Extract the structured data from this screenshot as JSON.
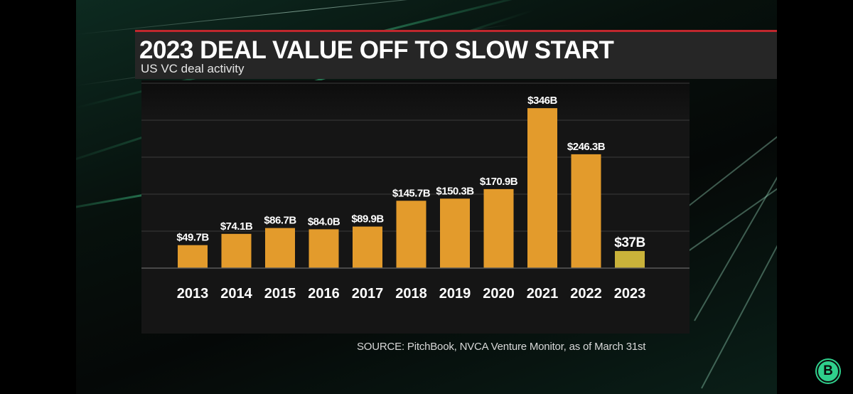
{
  "header": {
    "title": "2023 DEAL VALUE OFF TO SLOW START",
    "subtitle": "US VC deal activity"
  },
  "footer": {
    "source": "SOURCE: PitchBook, NVCA Venture Monitor, as of March 31st"
  },
  "badge": {
    "letter": "B",
    "color": "#2fd08c"
  },
  "colors": {
    "bar": "#e39b2c",
    "bar_current": "#c9b23a",
    "accent": "#c0272d",
    "panel": "#151515",
    "gridline": "#3a3a3a"
  },
  "chart_data": {
    "type": "bar",
    "title": "2023 DEAL VALUE OFF TO SLOW START",
    "subtitle": "US VC deal activity",
    "categories": [
      "2013",
      "2014",
      "2015",
      "2016",
      "2017",
      "2018",
      "2019",
      "2020",
      "2021",
      "2022",
      "2023"
    ],
    "values": [
      49.7,
      74.1,
      86.7,
      84.0,
      89.9,
      145.7,
      150.3,
      170.9,
      346,
      246.3,
      37
    ],
    "labels": [
      "$49.7B",
      "$74.1B",
      "$86.7B",
      "$84.0B",
      "$89.9B",
      "$145.7B",
      "$150.3B",
      "$170.9B",
      "$346B",
      "$246.3B",
      "$37B"
    ],
    "unit": "$B",
    "xlabel": "",
    "ylabel": "",
    "ylim": [
      0,
      400
    ],
    "gridlines": [
      0,
      80,
      160,
      240,
      320,
      400
    ],
    "grid": true,
    "legend": "none",
    "highlight_index": 10
  }
}
